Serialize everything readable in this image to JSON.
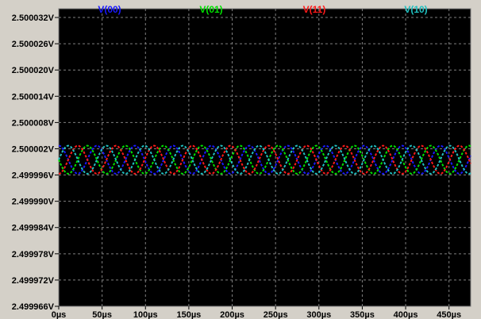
{
  "chart_data": {
    "type": "line",
    "title": "",
    "xlabel": "",
    "ylabel": "",
    "xlim": [
      0,
      475
    ],
    "ylim": [
      2.499966,
      2.500034
    ],
    "grid": true,
    "background": "#000000",
    "x_ticks": [
      "0µs",
      "50µs",
      "100µs",
      "150µs",
      "200µs",
      "250µs",
      "300µs",
      "350µs",
      "400µs",
      "450µs"
    ],
    "x_tick_values": [
      0,
      50,
      100,
      150,
      200,
      250,
      300,
      350,
      400,
      450
    ],
    "y_ticks": [
      "2.500032V",
      "2.500026V",
      "2.500020V",
      "2.500014V",
      "2.500008V",
      "2.500002V",
      "2.499996V",
      "2.499990V",
      "2.499984V",
      "2.499978V",
      "2.499972V",
      "2.499966V"
    ],
    "y_tick_values": [
      2.500032,
      2.500026,
      2.50002,
      2.500014,
      2.500008,
      2.500002,
      2.499996,
      2.49999,
      2.499984,
      2.499978,
      2.499972,
      2.499966
    ],
    "series": [
      {
        "name": "V(00)",
        "color": "#1a1aff",
        "mean": 2.4999995,
        "amplitude": 3.2e-06,
        "period_us": 44,
        "phase_deg": 90
      },
      {
        "name": "V(01)",
        "color": "#00e000",
        "mean": 2.4999995,
        "amplitude": 3.2e-06,
        "period_us": 44,
        "phase_deg": 180
      },
      {
        "name": "V(11)",
        "color": "#ff1a1a",
        "mean": 2.4999995,
        "amplitude": 3.2e-06,
        "period_us": 44,
        "phase_deg": 270
      },
      {
        "name": "V(10)",
        "color": "#20c0c0",
        "mean": 2.4999995,
        "amplitude": 3.2e-06,
        "period_us": 44,
        "phase_deg": 0
      }
    ]
  }
}
